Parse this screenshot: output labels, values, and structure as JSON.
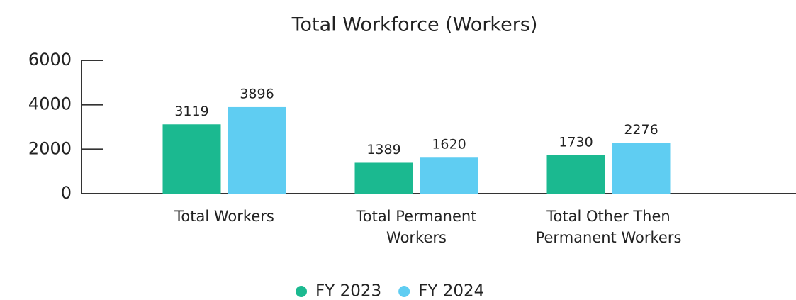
{
  "chart_data": {
    "type": "bar",
    "title": "Total Workforce (Workers)",
    "categories": [
      "Total Workers",
      "Total Permanent Workers",
      "Total Other Then Permanent Workers"
    ],
    "series": [
      {
        "name": "FY 2023",
        "color": "#1bb990",
        "values": [
          3119,
          1389,
          1730
        ]
      },
      {
        "name": "FY 2024",
        "color": "#5fcdf2",
        "values": [
          3896,
          1620,
          2276
        ]
      }
    ],
    "ylim": [
      0,
      6000
    ],
    "yticks": [
      0,
      2000,
      4000,
      6000
    ]
  }
}
